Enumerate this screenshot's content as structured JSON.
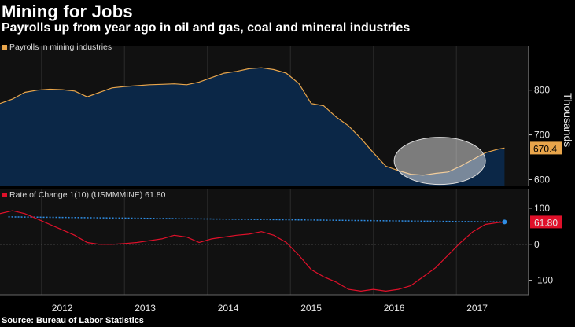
{
  "title": "Mining for Jobs",
  "subtitle": "Payrolls up from year ago in oil and gas, coal and mineral industries",
  "source": "Source: Bureau of Labor Statistics",
  "colors": {
    "payroll_line": "#e8a54b",
    "payroll_fill": "#0b2747",
    "roc_line": "#e0102a",
    "blue_marker": "#2f8de4",
    "highlight": "#ffffff"
  },
  "chart_data": [
    {
      "type": "area",
      "legend": "Payrolls in mining industries",
      "ylabel": "Thousands",
      "ylim": [
        585,
        875
      ],
      "yticks": [
        {
          "value": 800,
          "label": "800"
        },
        {
          "value": 700,
          "label": "700"
        },
        {
          "value": 600,
          "label": "600"
        }
      ],
      "last_value_label": "670.4",
      "x": [
        2011.25,
        2011.4,
        2011.55,
        2011.7,
        2011.85,
        2012.0,
        2012.15,
        2012.3,
        2012.45,
        2012.6,
        2012.75,
        2012.9,
        2013.05,
        2013.2,
        2013.35,
        2013.5,
        2013.65,
        2013.8,
        2013.95,
        2014.1,
        2014.25,
        2014.4,
        2014.55,
        2014.7,
        2014.85,
        2015.0,
        2015.15,
        2015.3,
        2015.45,
        2015.6,
        2015.75,
        2015.9,
        2016.05,
        2016.2,
        2016.35,
        2016.5,
        2016.65,
        2016.8,
        2016.95,
        2017.1,
        2017.25,
        2017.33
      ],
      "values": [
        770,
        780,
        795,
        800,
        802,
        801,
        798,
        785,
        795,
        805,
        808,
        810,
        812,
        813,
        814,
        812,
        818,
        828,
        838,
        842,
        848,
        850,
        846,
        838,
        815,
        770,
        765,
        740,
        720,
        692,
        660,
        630,
        620,
        612,
        610,
        614,
        617,
        630,
        645,
        660,
        668,
        670.4
      ]
    },
    {
      "type": "line",
      "legend": "Rate of Change 1(10) (USMMMINE) 61.80",
      "ylim": [
        -140,
        115
      ],
      "yticks": [
        {
          "value": 100,
          "label": "100"
        },
        {
          "value": 0,
          "label": "0"
        },
        {
          "value": -100,
          "label": "-100"
        }
      ],
      "last_value_label": "61.80",
      "x": [
        2011.25,
        2011.4,
        2011.55,
        2011.7,
        2011.85,
        2012.0,
        2012.15,
        2012.3,
        2012.45,
        2012.6,
        2012.75,
        2012.9,
        2013.05,
        2013.2,
        2013.35,
        2013.5,
        2013.65,
        2013.8,
        2013.95,
        2014.1,
        2014.25,
        2014.4,
        2014.55,
        2014.7,
        2014.85,
        2015.0,
        2015.15,
        2015.3,
        2015.45,
        2015.6,
        2015.75,
        2015.9,
        2016.05,
        2016.2,
        2016.35,
        2016.5,
        2016.65,
        2016.8,
        2016.95,
        2017.1,
        2017.25,
        2017.33
      ],
      "values": [
        85,
        93,
        85,
        70,
        55,
        40,
        25,
        5,
        0,
        0,
        2,
        5,
        10,
        15,
        25,
        20,
        5,
        15,
        20,
        25,
        28,
        35,
        25,
        5,
        -30,
        -70,
        -90,
        -105,
        -125,
        -130,
        -125,
        -130,
        -125,
        -115,
        -90,
        -65,
        -30,
        5,
        35,
        55,
        60,
        61.8
      ],
      "reference_line": {
        "from": [
          2011.35,
          76
        ],
        "to": [
          2017.33,
          61.8
        ]
      }
    }
  ],
  "x_axis": {
    "range": [
      2011.25,
      2017.62
    ],
    "ticks": [
      {
        "value": 2012,
        "label": "2012"
      },
      {
        "value": 2013,
        "label": "2013"
      },
      {
        "value": 2014,
        "label": "2014"
      },
      {
        "value": 2015,
        "label": "2015"
      },
      {
        "value": 2016,
        "label": "2016"
      },
      {
        "value": 2017,
        "label": "2017"
      }
    ],
    "dividers": [
      2011.75,
      2012.75,
      2013.75,
      2014.75,
      2015.75,
      2016.75
    ]
  }
}
